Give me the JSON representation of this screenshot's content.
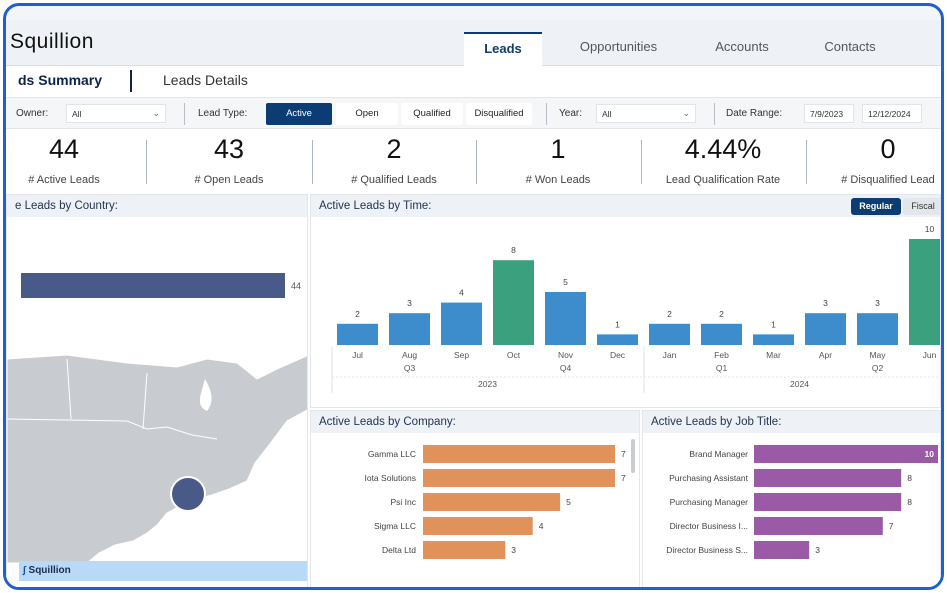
{
  "app": {
    "logo_text": "Squillion",
    "nav_tabs": [
      {
        "label": "Leads",
        "active": true
      },
      {
        "label": "Opportunities",
        "active": false
      },
      {
        "label": "Accounts",
        "active": false
      },
      {
        "label": "Contacts",
        "active": false
      }
    ],
    "sub_tabs": [
      {
        "label": "ds Summary",
        "active": true
      },
      {
        "label": "Leads Details",
        "active": false
      }
    ],
    "footer_logo_text": "Squillion"
  },
  "filters": {
    "owner_label": "Owner:",
    "owner_value": "All",
    "lead_type_label": "Lead Type:",
    "lead_type_options": [
      {
        "label": "Active",
        "active": true
      },
      {
        "label": "Open",
        "active": false
      },
      {
        "label": "Qualified",
        "active": false
      },
      {
        "label": "Disqualified",
        "active": false
      }
    ],
    "year_label": "Year:",
    "year_value": "All",
    "date_range_label": "Date Range:",
    "date_start": "7/9/2023",
    "date_end": "12/12/2024"
  },
  "kpis": [
    {
      "value": "44",
      "label": "# Active Leads"
    },
    {
      "value": "43",
      "label": "# Open Leads"
    },
    {
      "value": "2",
      "label": "# Qualified Leads"
    },
    {
      "value": "1",
      "label": "# Won Leads"
    },
    {
      "value": "4.44%",
      "label": "Lead Qualification Rate"
    },
    {
      "value": "0",
      "label": "# Disqualified Lead"
    }
  ],
  "panels": {
    "country_title": "e Leads by Country:",
    "time_title": "Active Leads by Time:",
    "time_toggle": [
      {
        "label": "Regular",
        "active": true
      },
      {
        "label": "Fiscal",
        "active": false
      }
    ],
    "company_title": "Active Leads by Company:",
    "job_title": "Active Leads by Job Title:"
  },
  "colors": {
    "primary": "#0b3c74",
    "country_bar": "#4a5a88",
    "time_bar": "#3d8ccc",
    "time_bar_peak": "#3aa07e",
    "company_bar": "#e0925a",
    "job_bar": "#9b5aa6",
    "map_land": "#c8ccd1",
    "map_sea": "#ffffff",
    "map_bubble": "#4a5a88",
    "frame_border": "#1f5fd0"
  },
  "chart_data": [
    {
      "type": "bar",
      "orientation": "horizontal",
      "categories": [
        ""
      ],
      "values": [
        44
      ],
      "data_labels": [
        "44"
      ]
    },
    {
      "type": "bar",
      "categories": [
        "Jul",
        "Aug",
        "Sep",
        "Oct",
        "Nov",
        "Dec",
        "Jan",
        "Feb",
        "Mar",
        "Apr",
        "May",
        "Jun"
      ],
      "quarters": [
        "Q3",
        "Q4",
        "Q1",
        "Q2"
      ],
      "years": [
        "2023",
        "2024"
      ],
      "values": [
        2,
        3,
        4,
        8,
        5,
        1,
        2,
        2,
        1,
        3,
        3,
        10
      ],
      "data_labels": [
        "2",
        "3",
        "4",
        "8",
        "5",
        "1",
        "2",
        "2",
        "1",
        "3",
        "3",
        "10"
      ],
      "ylim": [
        0,
        10
      ]
    },
    {
      "type": "bar",
      "orientation": "horizontal",
      "categories": [
        "Gamma LLC",
        "Iota Solutions",
        "Psi Inc",
        "Sigma LLC",
        "Delta Ltd"
      ],
      "values": [
        7,
        7,
        5,
        4,
        3
      ],
      "data_labels": [
        "7",
        "7",
        "5",
        "4",
        "3"
      ]
    },
    {
      "type": "bar",
      "orientation": "horizontal",
      "categories": [
        "Brand Manager",
        "Purchasing Assistant",
        "Purchasing Manager",
        "Director Business I...",
        "Director Business S..."
      ],
      "values": [
        10,
        8,
        8,
        7,
        3
      ],
      "data_labels": [
        "10",
        "8",
        "8",
        "7",
        "3"
      ]
    }
  ]
}
